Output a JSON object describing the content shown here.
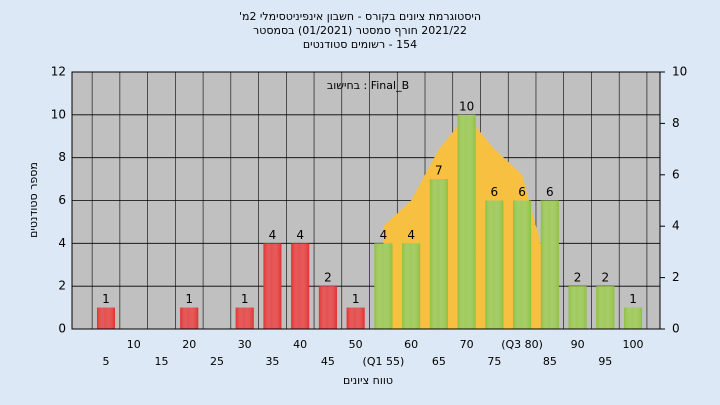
{
  "chart_data": {
    "type": "bar",
    "title": "היסטוגרמת ציונים בקורס - חשבון אינפיניטסימלי 2מ'",
    "subtitle": "2021/22 חורף סמסטר  (01/2021)  בסמסטר",
    "subtitle2": "154 - רשומים סטודנטים",
    "annotation": "Final_B : בחישוב",
    "x_label": "טווח ציונים",
    "y_label": "מספר סטודנטים",
    "categories": [
      "5",
      "10",
      "15",
      "20",
      "25",
      "30",
      "35",
      "40",
      "45",
      "50",
      "(Q1 55)",
      "60",
      "65",
      "70",
      "75",
      "(Q3 80)",
      "85",
      "90",
      "95",
      "100"
    ],
    "values": [
      1,
      0,
      0,
      1,
      0,
      1,
      4,
      4,
      2,
      1,
      4,
      4,
      7,
      10,
      6,
      6,
      6,
      2,
      2,
      1
    ],
    "colors": [
      "#e03030",
      "#e03030",
      "#e03030",
      "#e03030",
      "#e03030",
      "#e03030",
      "#e03030",
      "#e03030",
      "#e03030",
      "#e03030",
      "#8fc040",
      "#8fc040",
      "#8fc040",
      "#8fc040",
      "#8fc040",
      "#8fc040",
      "#8fc040",
      "#8fc040",
      "#8fc040",
      "#8fc040"
    ],
    "area": {
      "color": "#f8c040",
      "axis": "y2",
      "values": [
        null,
        null,
        null,
        null,
        null,
        null,
        null,
        null,
        null,
        null,
        4,
        5,
        7,
        8.3,
        7,
        6,
        2,
        null,
        null,
        null
      ]
    },
    "ylim": [
      0,
      12
    ],
    "yticks": [
      0,
      2,
      4,
      6,
      8,
      10,
      12
    ],
    "y2lim": [
      0,
      10
    ],
    "y2ticks": [
      0,
      2,
      4,
      6,
      8,
      10
    ],
    "grid": true
  }
}
